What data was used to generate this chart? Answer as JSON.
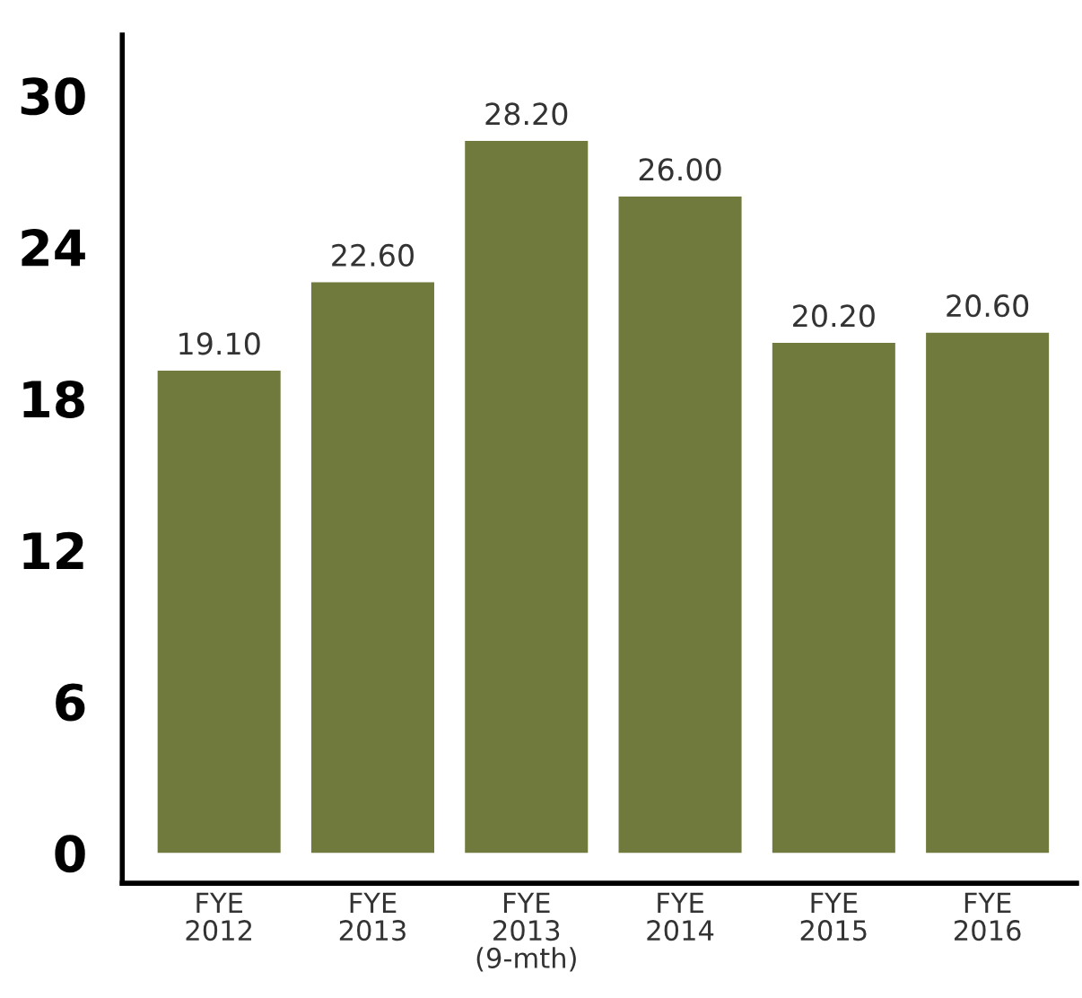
{
  "chart_data": {
    "type": "bar",
    "categories": [
      "FYE\n2012",
      "FYE\n2013",
      "FYE\n2013\n(9-mth)",
      "FYE\n2014",
      "FYE\n2015",
      "FYE\n2016"
    ],
    "values": [
      19.1,
      22.6,
      28.2,
      26.0,
      20.2,
      20.6
    ],
    "value_labels": [
      "19.10",
      "22.60",
      "28.20",
      "26.00",
      "20.20",
      "20.60"
    ],
    "color": "#6f7a3c",
    "ylim": [
      -1.2,
      32.4
    ],
    "yticks": [
      0,
      6,
      12,
      18,
      24,
      30
    ],
    "grid": false,
    "legend": false
  }
}
